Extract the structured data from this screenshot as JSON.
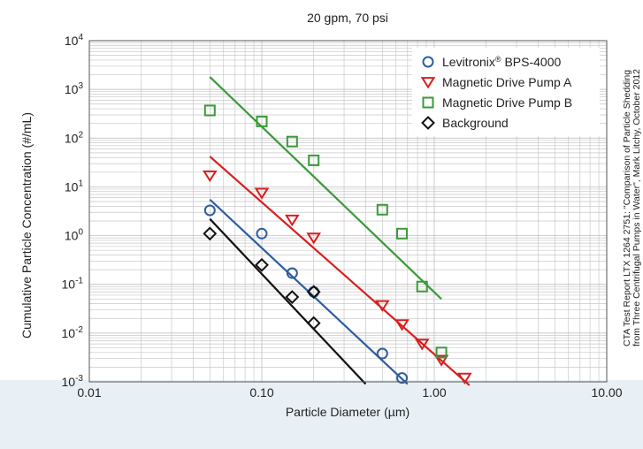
{
  "colors": {
    "levitronix": "#2e5d9e",
    "pump_a": "#d81e1e",
    "pump_b": "#3a9a3a",
    "background": "#111111",
    "grid": "#c8c8c8",
    "page_bg": "#e9f0f5"
  },
  "chart_data": {
    "type": "scatter",
    "title": "20 gpm, 70 psi",
    "xlabel": "Particle Diameter (µm)",
    "ylabel": "Cumulative Particle Concentration (#/mL)",
    "xscale": "log",
    "yscale": "log",
    "xlim": [
      0.01,
      10
    ],
    "ylim": [
      0.001,
      10000
    ],
    "grid": true,
    "legend_position": "top-right",
    "x_ticks": [
      "0.01",
      "0.10",
      "1.00",
      "10.00"
    ],
    "y_ticks": [
      {
        "base": "10",
        "exp": "4"
      },
      {
        "base": "10",
        "exp": "3"
      },
      {
        "base": "10",
        "exp": "2"
      },
      {
        "base": "10",
        "exp": "1"
      },
      {
        "base": "10",
        "exp": "0"
      },
      {
        "base": "10",
        "exp": "-1"
      },
      {
        "base": "10",
        "exp": "-2"
      },
      {
        "base": "10",
        "exp": "-3"
      }
    ],
    "source_note": [
      "CTA Test Report LTX 1264 2751: \"Comparison of Particle Shedding",
      "from Three Centrifugal Pumps in Water\", Mark Litchy, October 2012"
    ],
    "series": [
      {
        "name": "Levitronix",
        "name_sup": "®",
        "name_rest": " BPS-4000",
        "marker": "circle",
        "points": [
          [
            0.05,
            3.3
          ],
          [
            0.1,
            1.1
          ],
          [
            0.15,
            0.17
          ],
          [
            0.2,
            0.07
          ],
          [
            0.5,
            0.0038
          ],
          [
            0.65,
            0.0012
          ]
        ],
        "fit": [
          [
            0.05,
            5.5
          ],
          [
            0.7,
            0.0009
          ]
        ]
      },
      {
        "name": "Magnetic Drive Pump A",
        "marker": "triangle-down",
        "points": [
          [
            0.05,
            17
          ],
          [
            0.1,
            7.5
          ],
          [
            0.15,
            2.1
          ],
          [
            0.2,
            0.9
          ],
          [
            0.5,
            0.037
          ],
          [
            0.65,
            0.015
          ],
          [
            0.85,
            0.006
          ],
          [
            1.1,
            0.0028
          ],
          [
            1.5,
            0.0012
          ]
        ],
        "fit": [
          [
            0.05,
            42
          ],
          [
            1.6,
            0.00085
          ]
        ]
      },
      {
        "name": "Magnetic Drive Pump B",
        "marker": "square",
        "points": [
          [
            0.05,
            370
          ],
          [
            0.1,
            220
          ],
          [
            0.15,
            85
          ],
          [
            0.2,
            35
          ],
          [
            0.5,
            3.4
          ],
          [
            0.65,
            1.1
          ],
          [
            0.85,
            0.09
          ],
          [
            1.1,
            0.004
          ]
        ],
        "fit": [
          [
            0.05,
            1800
          ],
          [
            1.1,
            0.05
          ]
        ]
      },
      {
        "name": "Background",
        "marker": "diamond",
        "points": [
          [
            0.05,
            1.1
          ],
          [
            0.1,
            0.25
          ],
          [
            0.15,
            0.055
          ],
          [
            0.2,
            0.07
          ],
          [
            0.2,
            0.016
          ]
        ],
        "fit": [
          [
            0.05,
            2.2
          ],
          [
            0.4,
            0.0009
          ]
        ]
      }
    ]
  }
}
